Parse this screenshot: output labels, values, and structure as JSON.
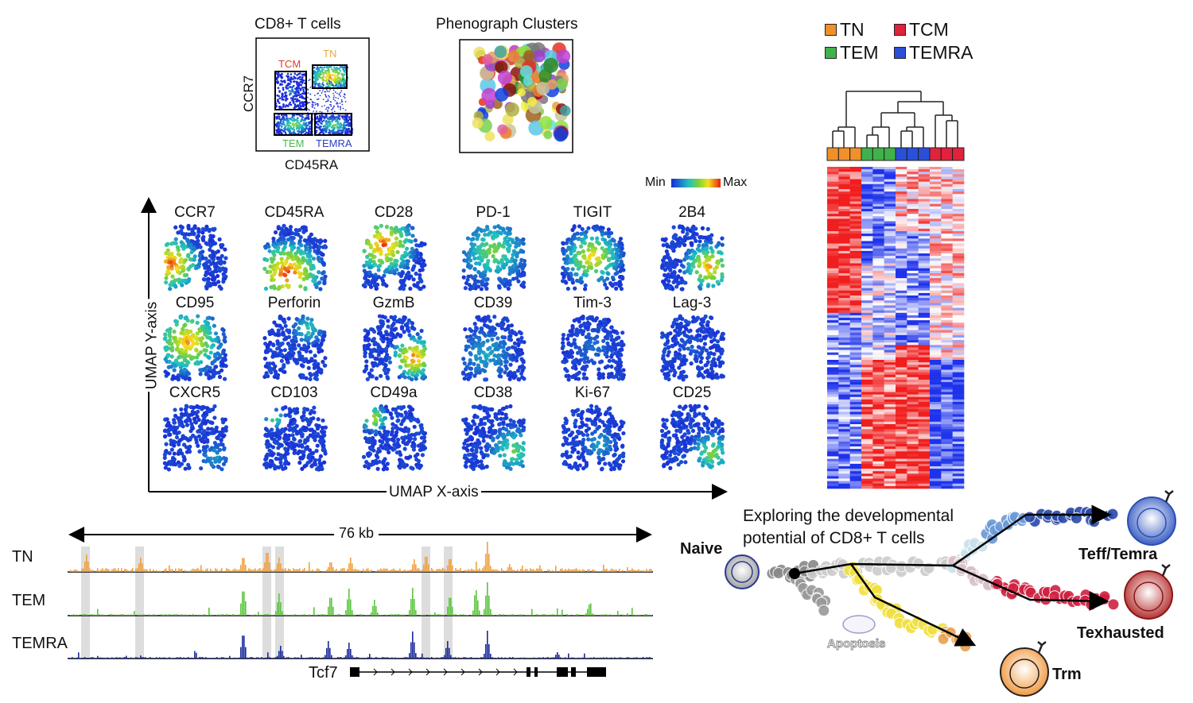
{
  "flow_plot": {
    "title": "CD8+ T cells",
    "y_label": "CCR7",
    "x_label": "CD45RA",
    "gates": [
      {
        "label": "TCM",
        "color": "#e23a2c"
      },
      {
        "label": "TN",
        "color": "#e8a94a"
      },
      {
        "label": "TEM",
        "color": "#4cb84a"
      },
      {
        "label": "TEMRA",
        "color": "#2a3fc0"
      }
    ]
  },
  "phenograph": {
    "title": "Phenograph Clusters"
  },
  "legend": [
    {
      "label": "TN",
      "color": "#f0902a"
    },
    {
      "label": "TCM",
      "color": "#e0223c"
    },
    {
      "label": "TEM",
      "color": "#3fb24a"
    },
    {
      "label": "TEMRA",
      "color": "#2a4fd8"
    }
  ],
  "colorbar": {
    "min_label": "Min",
    "max_label": "Max"
  },
  "umap": {
    "x_axis_label": "UMAP X-axis",
    "y_axis_label": "UMAP Y-axis",
    "markers": [
      "CCR7",
      "CD45RA",
      "CD28",
      "PD-1",
      "TIGIT",
      "2B4",
      "CD95",
      "Perforin",
      "GzmB",
      "CD39",
      "Tim-3",
      "Lag-3",
      "CXCR5",
      "CD103",
      "CD49a",
      "CD38",
      "Ki-67",
      "CD25"
    ]
  },
  "tracks": {
    "span_label": "76 kb",
    "rows": [
      {
        "label": "TN",
        "color": "#f0a040"
      },
      {
        "label": "TEM",
        "color": "#5cc440"
      },
      {
        "label": "TEMRA",
        "color": "#1a2a9a"
      }
    ],
    "gene_label": "Tcf7"
  },
  "trajectory": {
    "title_line1": "Exploring the developmental",
    "title_line2": "potential of CD8+ T cells",
    "naive_label": "Naive",
    "apoptosis_label": "Apoptosis",
    "teff_label": "Teff/Temra",
    "texhausted_label": "Texhausted",
    "trm_label": "Trm"
  }
}
